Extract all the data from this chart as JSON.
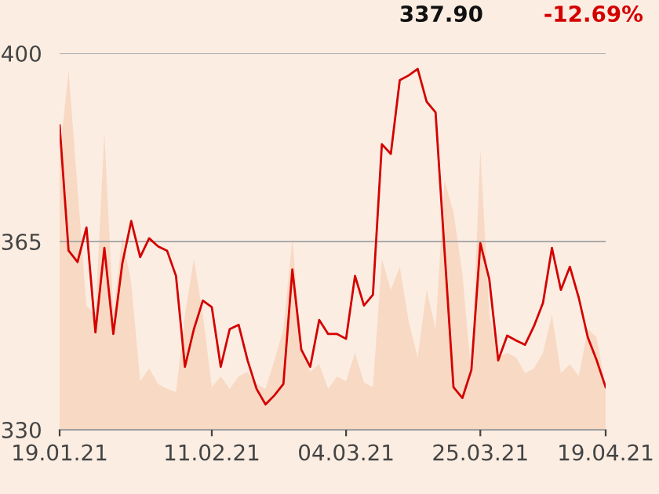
{
  "chart_data": {
    "type": "line",
    "annotations": [
      "337.90",
      "-12.69%"
    ],
    "categories": [
      "19.01.21",
      null,
      null,
      null,
      null,
      null,
      null,
      null,
      null,
      null,
      null,
      null,
      null,
      null,
      null,
      null,
      null,
      "11.02.21",
      null,
      null,
      null,
      null,
      null,
      null,
      null,
      null,
      null,
      null,
      null,
      null,
      null,
      null,
      "04.03.21",
      null,
      null,
      null,
      null,
      null,
      null,
      null,
      null,
      null,
      null,
      null,
      null,
      null,
      null,
      "25.03.21",
      null,
      null,
      null,
      null,
      null,
      null,
      null,
      null,
      null,
      null,
      null,
      null,
      null,
      "19.04.21"
    ],
    "series": [
      {
        "type": "area",
        "color": "#f8d9c4",
        "values": [
          380.8,
          396.8,
          374.9,
          353.0,
          351.4,
          385.1,
          351.4,
          366.0,
          357.3,
          339.0,
          341.4,
          338.5,
          337.6,
          337.0,
          351.4,
          361.8,
          351.4,
          337.9,
          339.9,
          337.6,
          339.9,
          340.8,
          338.5,
          337.6,
          342.9,
          348.7,
          365.6,
          345.3,
          340.8,
          342.2,
          337.6,
          339.9,
          339.0,
          344.3,
          338.8,
          337.9,
          361.8,
          356.0,
          360.3,
          350.1,
          343.4,
          356.0,
          348.7,
          376.4,
          370.5,
          358.9,
          339.9,
          382.2,
          351.4,
          343.4,
          344.3,
          343.4,
          340.5,
          341.4,
          344.3,
          351.4,
          340.5,
          342.2,
          339.9,
          348.7,
          347.2,
          337.6
        ]
      },
      {
        "color": "#d40000",
        "values": [
          386.6,
          363.3,
          361.2,
          367.6,
          348.1,
          363.8,
          347.8,
          360.9,
          368.8,
          362.1,
          365.6,
          364.1,
          363.3,
          358.6,
          341.7,
          348.7,
          354.0,
          352.8,
          341.7,
          348.7,
          349.5,
          342.9,
          337.6,
          334.7,
          336.4,
          338.5,
          359.8,
          344.9,
          341.7,
          350.4,
          347.8,
          347.8,
          346.9,
          358.6,
          353.1,
          355.1,
          383.1,
          381.3,
          395.0,
          395.9,
          397.1,
          391.0,
          389.0,
          363.3,
          337.9,
          335.9,
          341.1,
          364.7,
          358.0,
          342.9,
          347.5,
          346.6,
          345.8,
          349.3,
          353.6,
          363.8,
          356.0,
          360.3,
          354.5,
          347.2,
          342.9,
          337.9
        ]
      }
    ],
    "ylim": [
      330,
      400
    ],
    "yticks": [
      330,
      365,
      400
    ],
    "grid": "y"
  }
}
